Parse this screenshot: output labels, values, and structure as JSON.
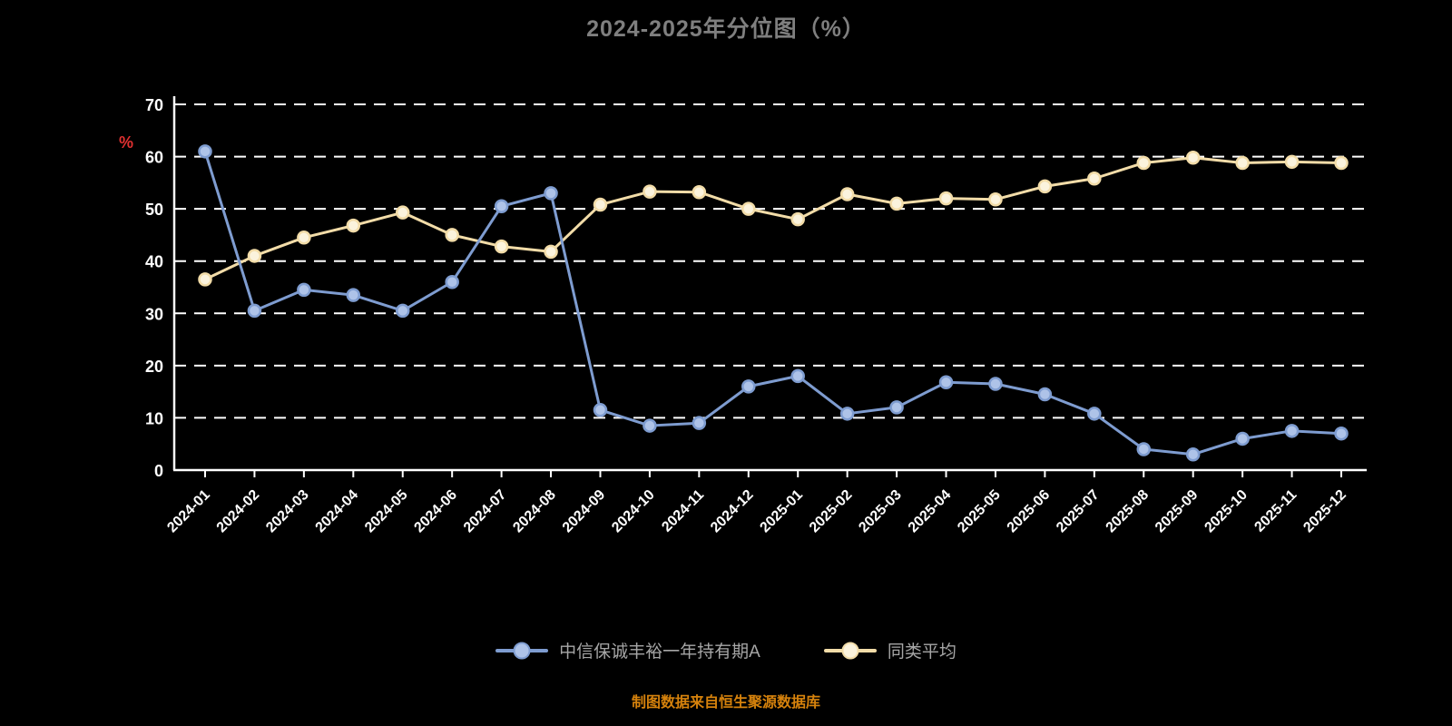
{
  "title": "2024-2025年分位图（%）",
  "y_axis_unit": "%",
  "footer_note": "制图数据来自恒生聚源数据库",
  "colors": {
    "background": "#000000",
    "title_text": "#7f7f7f",
    "axis": "#ffffff",
    "grid": "#ffffff",
    "tick_text": "#ffffff",
    "unit_text": "#e03030",
    "legend_text": "#a6a6a6",
    "footer_text": "#d6820c",
    "series_blue": "#7e9cd0",
    "series_yellow": "#f2dca8"
  },
  "chart_data": {
    "type": "line",
    "title": "2024-2025年分位图（%）",
    "xlabel": "",
    "ylabel": "%",
    "ylim": [
      0,
      70
    ],
    "yticks": [
      0,
      10,
      20,
      30,
      40,
      50,
      60,
      70
    ],
    "grid": "horizontal-dashed",
    "legend_position": "bottom",
    "categories": [
      "2024-01",
      "2024-02",
      "2024-03",
      "2024-04",
      "2024-05",
      "2024-06",
      "2024-07",
      "2024-08",
      "2024-09",
      "2024-10",
      "2024-11",
      "2024-12",
      "2025-01",
      "2025-02",
      "2025-03",
      "2025-04",
      "2025-05",
      "2025-06",
      "2025-07",
      "2025-08",
      "2025-09",
      "2025-10",
      "2025-11",
      "2025-12"
    ],
    "series": [
      {
        "name": "中信保诚丰裕一年持有期A",
        "color": "#7e9cd0",
        "marker_fill": "#aec3e8",
        "values": [
          61,
          30.5,
          34.5,
          33.5,
          30.5,
          36,
          50.5,
          53,
          11.5,
          8.5,
          9,
          16,
          18,
          10.8,
          12,
          16.8,
          16.5,
          14.5,
          10.8,
          4,
          3,
          6,
          7.5,
          7
        ]
      },
      {
        "name": "同类平均",
        "color": "#f2dca8",
        "marker_fill": "#fbf3dd",
        "values": [
          36.5,
          41,
          44.5,
          46.8,
          49.3,
          45,
          42.8,
          41.8,
          50.8,
          53.3,
          53.2,
          50,
          48,
          52.8,
          51,
          52,
          51.8,
          54.3,
          55.8,
          58.8,
          59.8,
          58.8,
          59,
          58.8
        ]
      }
    ]
  }
}
